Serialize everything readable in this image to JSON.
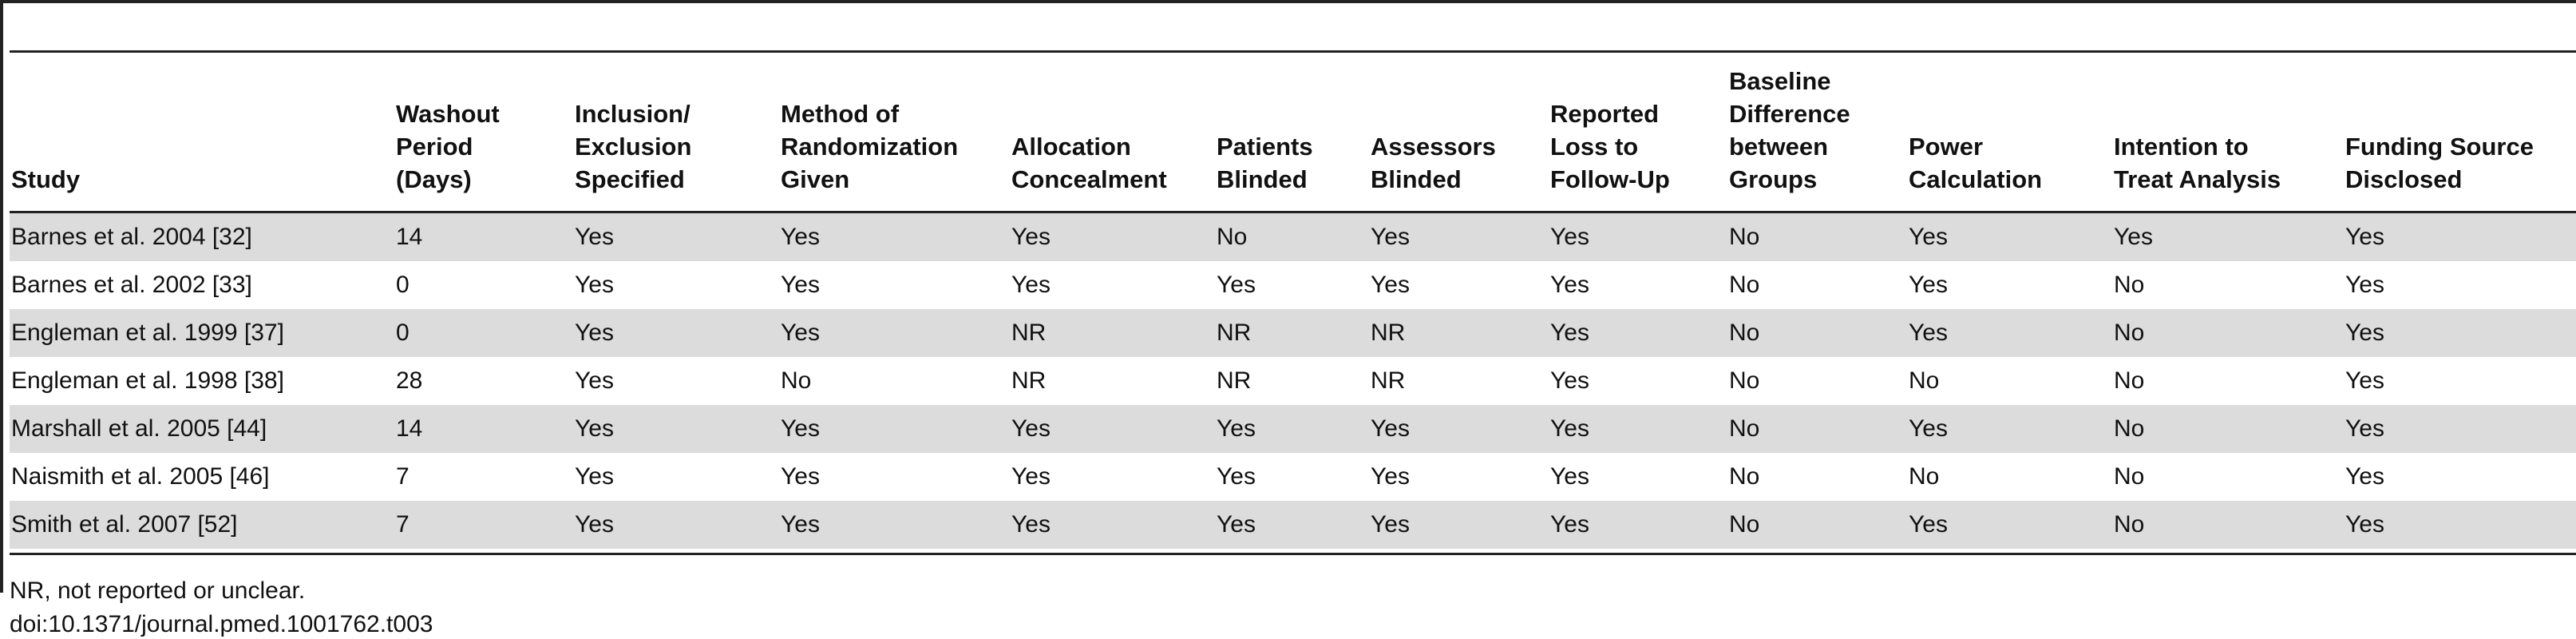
{
  "table": {
    "columns": [
      "Study",
      "Washout\nPeriod\n(Days)",
      "Inclusion/\nExclusion\nSpecified",
      "Method of\nRandomization\nGiven",
      "Allocation\nConcealment",
      "Patients\nBlinded",
      "Assessors\nBlinded",
      "Reported\nLoss to\nFollow-Up",
      "Baseline\nDifference\nbetween\nGroups",
      "Power\nCalculation",
      "Intention to\nTreat Analysis",
      "Funding Source\nDisclosed"
    ],
    "rows": [
      [
        "Barnes et al. 2004 [32]",
        "14",
        "Yes",
        "Yes",
        "Yes",
        "No",
        "Yes",
        "Yes",
        "No",
        "Yes",
        "Yes",
        "Yes"
      ],
      [
        "Barnes et al. 2002 [33]",
        "0",
        "Yes",
        "Yes",
        "Yes",
        "Yes",
        "Yes",
        "Yes",
        "No",
        "Yes",
        "No",
        "Yes"
      ],
      [
        "Engleman et al. 1999 [37]",
        "0",
        "Yes",
        "Yes",
        "NR",
        "NR",
        "NR",
        "Yes",
        "No",
        "Yes",
        "No",
        "Yes"
      ],
      [
        "Engleman et al. 1998 [38]",
        "28",
        "Yes",
        "No",
        "NR",
        "NR",
        "NR",
        "Yes",
        "No",
        "No",
        "No",
        "Yes"
      ],
      [
        "Marshall et al. 2005 [44]",
        "14",
        "Yes",
        "Yes",
        "Yes",
        "Yes",
        "Yes",
        "Yes",
        "No",
        "Yes",
        "No",
        "Yes"
      ],
      [
        "Naismith et al. 2005 [46]",
        "7",
        "Yes",
        "Yes",
        "Yes",
        "Yes",
        "Yes",
        "Yes",
        "No",
        "No",
        "No",
        "Yes"
      ],
      [
        "Smith et al. 2007 [52]",
        "7",
        "Yes",
        "Yes",
        "Yes",
        "Yes",
        "Yes",
        "Yes",
        "No",
        "Yes",
        "No",
        "Yes"
      ]
    ]
  },
  "footnote": "NR, not reported or unclear.",
  "doi": "doi:10.1371/journal.pmed.1001762.t003"
}
